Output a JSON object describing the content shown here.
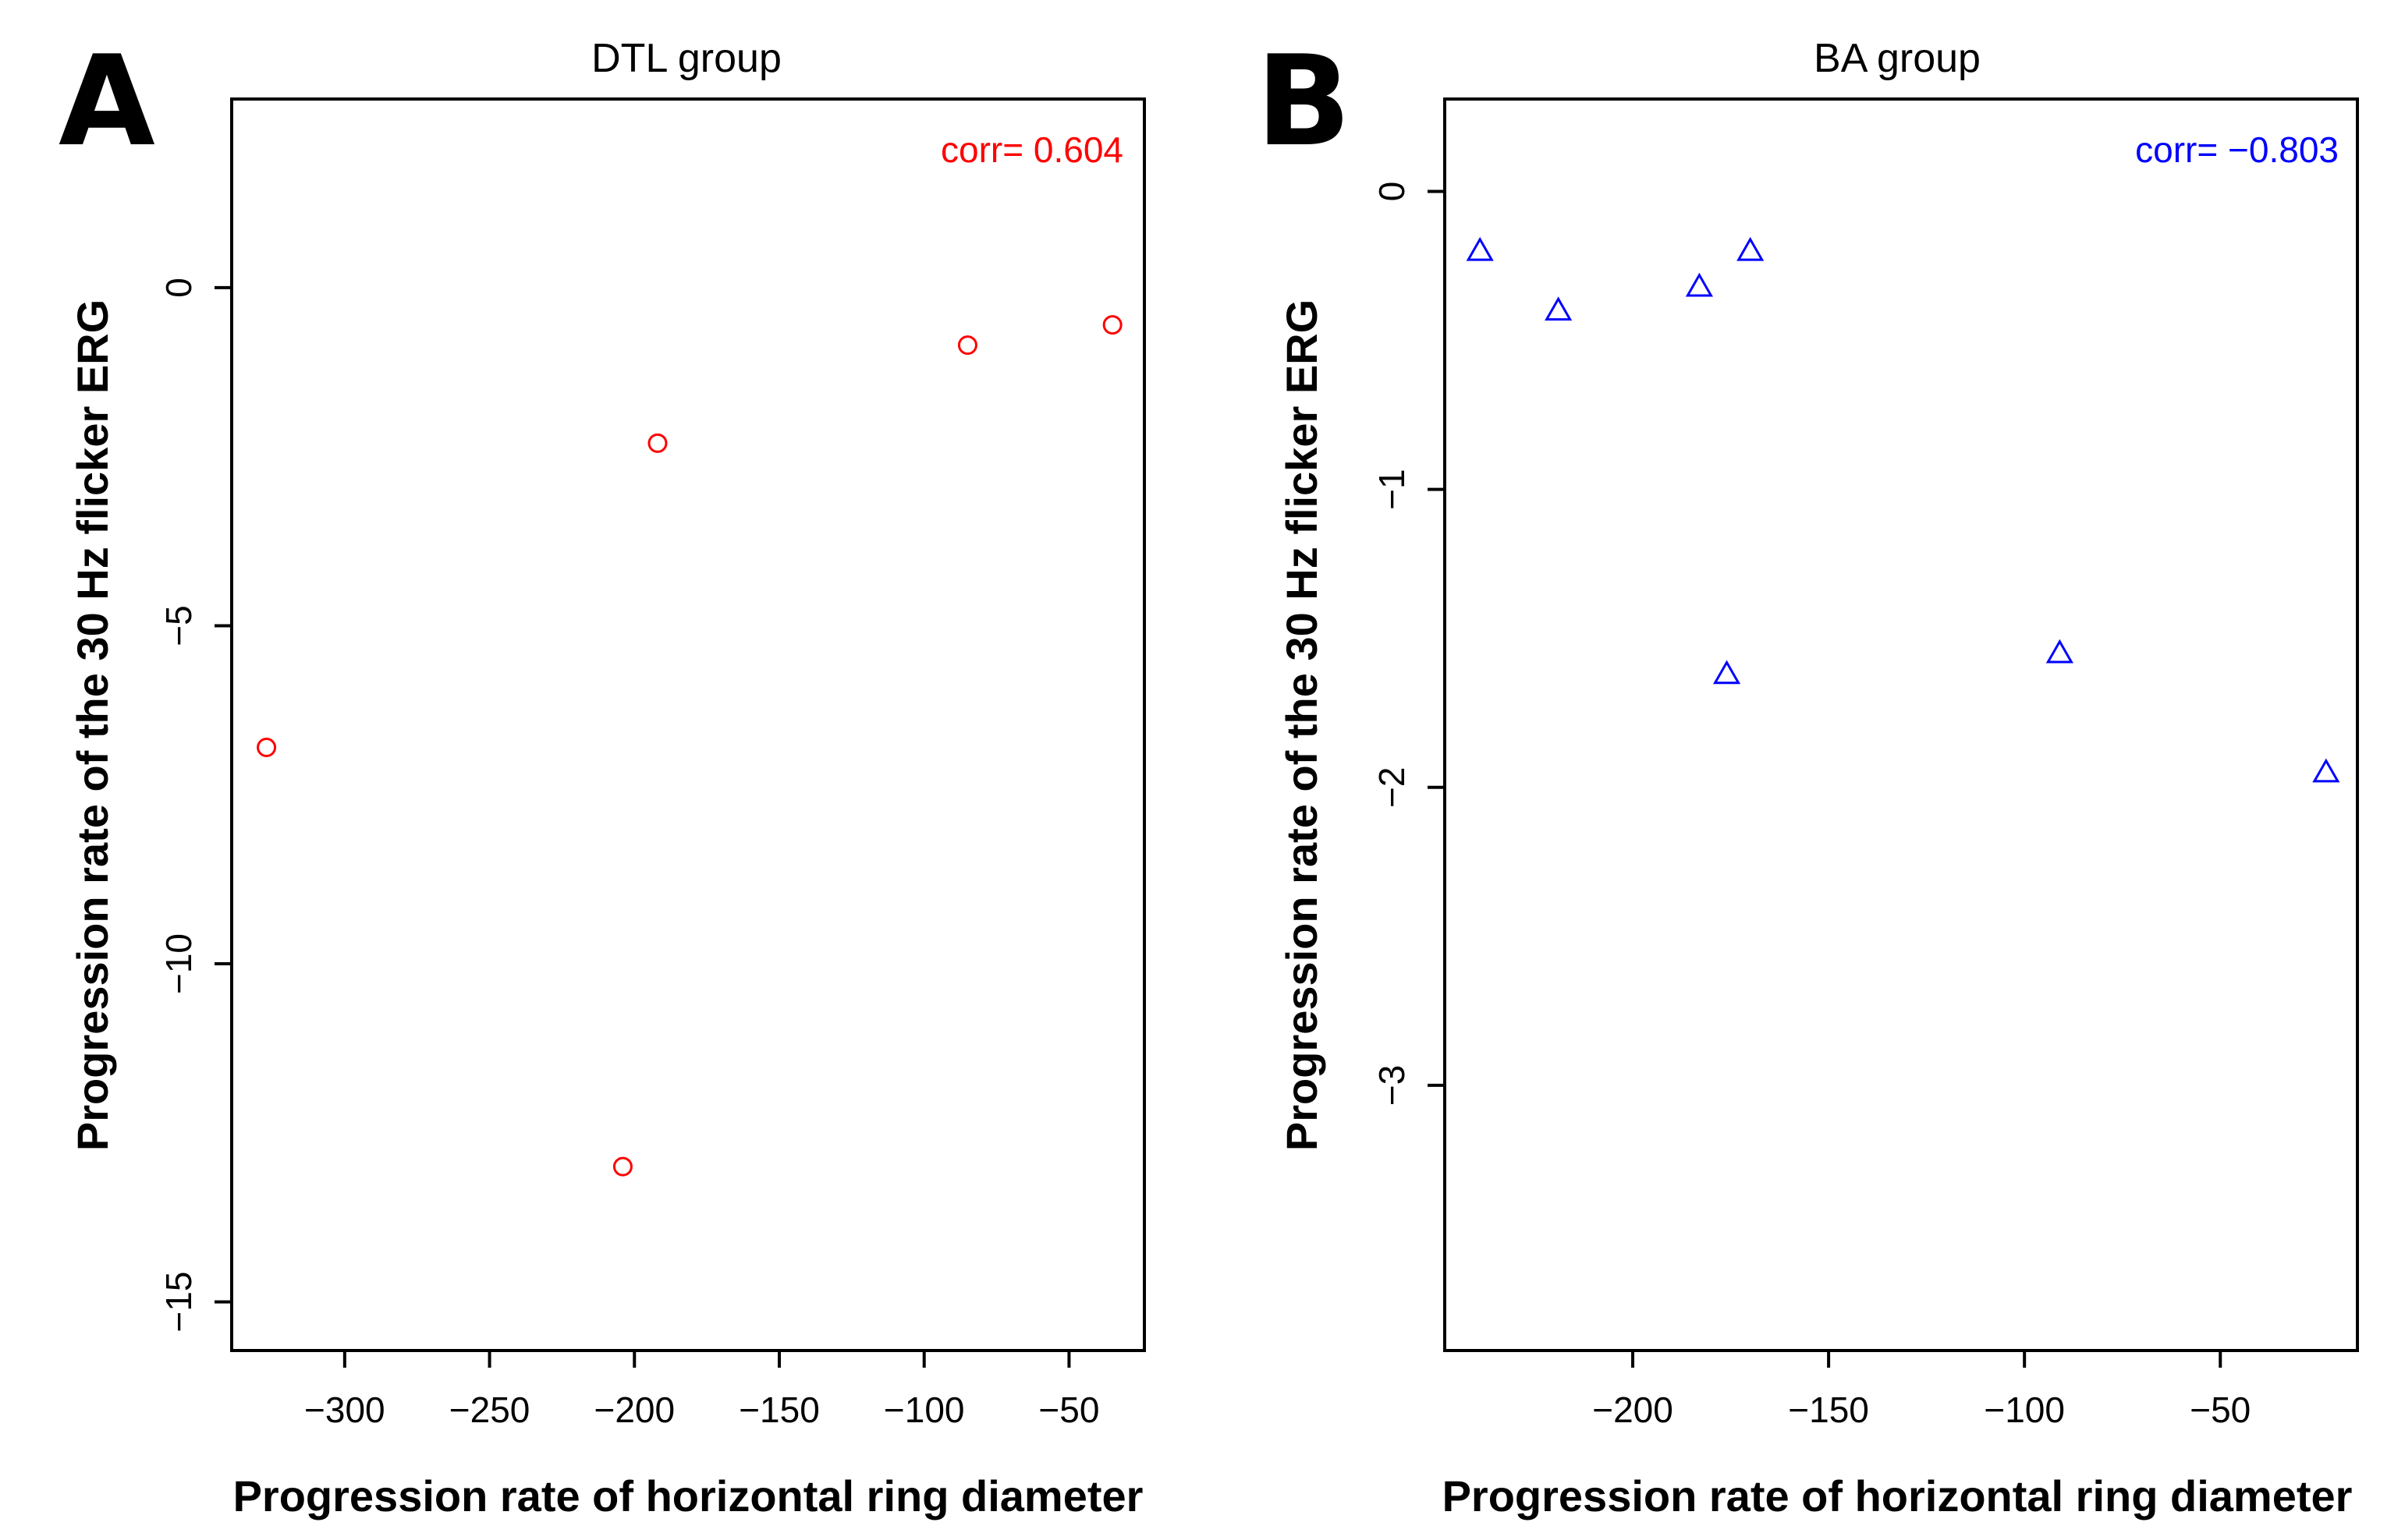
{
  "chart_data": [
    {
      "panel_letter": "A",
      "type": "scatter",
      "title": "DTL group",
      "xlabel": "Progression rate of horizontal ring diameter",
      "ylabel": "Progression rate of the 30 Hz flicker ERG",
      "xlim": [
        -339,
        -24
      ],
      "ylim": [
        -15.72,
        2.79
      ],
      "xticks": [
        -300,
        -250,
        -200,
        -150,
        -100,
        -50
      ],
      "xtick_labels": [
        "−300",
        "−250",
        "−200",
        "−150",
        "−100",
        "−50"
      ],
      "yticks": [
        0,
        -5,
        -10,
        -15
      ],
      "ytick_labels": [
        "0",
        "−5",
        "−10",
        "−15"
      ],
      "marker": "circle",
      "color": "#ff0000",
      "annotation": "corr= 0.604",
      "annotation_position": "top-right",
      "points": [
        {
          "x": -327,
          "y": -6.8
        },
        {
          "x": -204,
          "y": -13.0
        },
        {
          "x": -192,
          "y": -2.3
        },
        {
          "x": -85,
          "y": -0.85
        },
        {
          "x": -35,
          "y": -0.55
        }
      ]
    },
    {
      "panel_letter": "B",
      "type": "scatter",
      "title": "BA group",
      "xlabel": "Progression rate of horizontal ring diameter",
      "ylabel": "Progression rate of the 30 Hz flicker ERG",
      "xlim": [
        -248,
        -15
      ],
      "ylim": [
        -3.89,
        0.31
      ],
      "xticks": [
        -200,
        -150,
        -100,
        -50
      ],
      "xtick_labels": [
        "−200",
        "−150",
        "−100",
        "−50"
      ],
      "yticks": [
        0,
        -1,
        -2,
        -3
      ],
      "ytick_labels": [
        "0",
        "−1",
        "−2",
        "−3"
      ],
      "marker": "triangle",
      "color": "#0000ff",
      "annotation": "corr= −0.803",
      "annotation_position": "top-right",
      "points": [
        {
          "x": -239,
          "y": -0.2
        },
        {
          "x": -219,
          "y": -0.4
        },
        {
          "x": -183,
          "y": -0.32
        },
        {
          "x": -170,
          "y": -0.2
        },
        {
          "x": -176,
          "y": -1.62
        },
        {
          "x": -91,
          "y": -1.55
        },
        {
          "x": -23,
          "y": -1.95
        }
      ]
    }
  ]
}
